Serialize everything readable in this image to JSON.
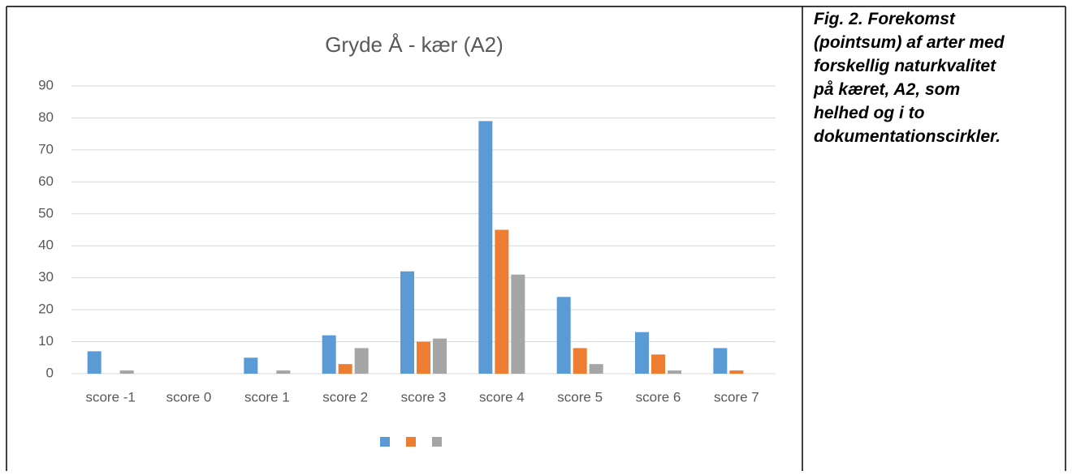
{
  "chart_data": {
    "type": "bar",
    "title": "Gryde Å - kær (A2)",
    "categories": [
      "score -1",
      "score 0",
      "score 1",
      "score 2",
      "score 3",
      "score 4",
      "score 5",
      "score 6",
      "score 7"
    ],
    "series": [
      {
        "color": "#5b9bd5",
        "values": [
          7,
          0,
          5,
          12,
          32,
          79,
          24,
          13,
          8
        ]
      },
      {
        "color": "#ed7d31",
        "values": [
          0,
          0,
          0,
          3,
          10,
          45,
          8,
          6,
          1
        ]
      },
      {
        "color": "#a5a5a5",
        "values": [
          1,
          0,
          1,
          8,
          11,
          31,
          3,
          1,
          0
        ]
      }
    ],
    "ylim": [
      0,
      90
    ],
    "yticks": [
      0,
      10,
      20,
      30,
      40,
      50,
      60,
      70,
      80,
      90
    ],
    "grid": true,
    "legend": "bottom"
  },
  "caption": [
    "Fig. 2. Forekomst",
    "(pointsum) af arter med",
    "forskellig naturkvalitet",
    "på kæret, A2, som",
    "helhed og i to",
    "dokumentationscirkler."
  ]
}
